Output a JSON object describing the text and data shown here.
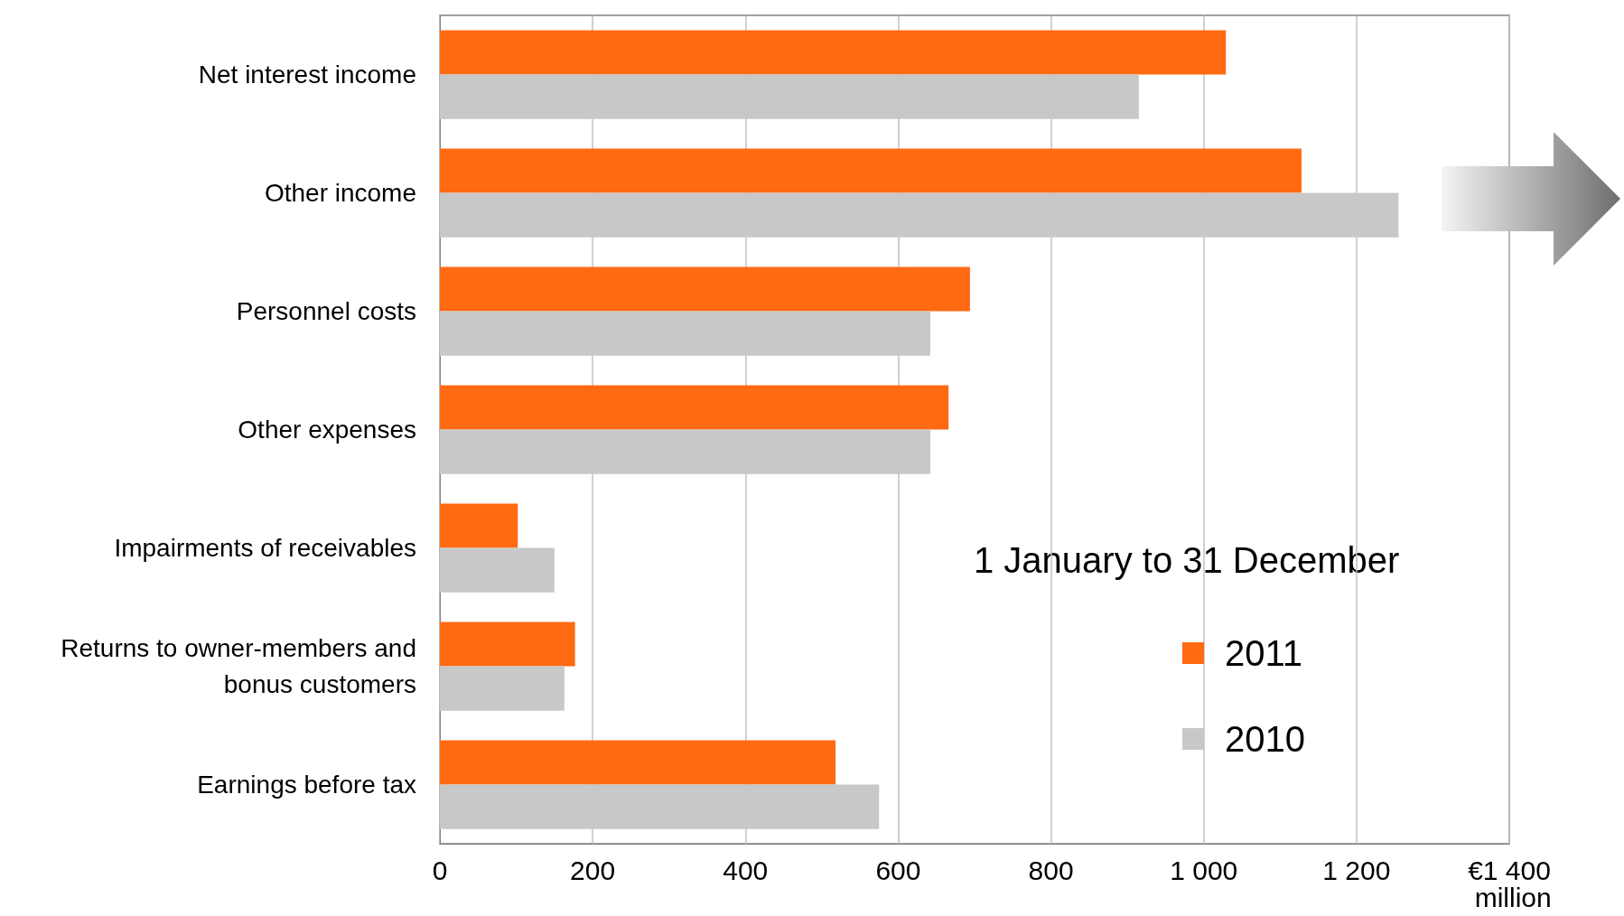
{
  "chart_data": {
    "type": "bar",
    "orientation": "horizontal",
    "legend_title": "1 January to 31 December",
    "categories": [
      "Net interest income",
      "Other income",
      "Personnel costs",
      "Other expenses",
      "Impairments of receivables",
      "Returns to owner-members and bonus customers",
      "Earnings before tax"
    ],
    "series": [
      {
        "name": "2011",
        "color": "#ff6a13",
        "values": [
          1029,
          1128,
          694,
          666,
          102,
          177,
          518
        ]
      },
      {
        "name": "2010",
        "color": "#c8c8c8",
        "values": [
          915,
          1255,
          642,
          642,
          150,
          163,
          575
        ]
      }
    ],
    "xlim": [
      0,
      1400
    ],
    "xticks": [
      0,
      200,
      400,
      600,
      800,
      {
        "value": 1000,
        "label": "1 000"
      },
      {
        "value": 1200,
        "label": "1 200"
      },
      {
        "value": 1400,
        "label": "€1 400 million"
      }
    ],
    "grid": "x",
    "legend": "bottom right"
  }
}
